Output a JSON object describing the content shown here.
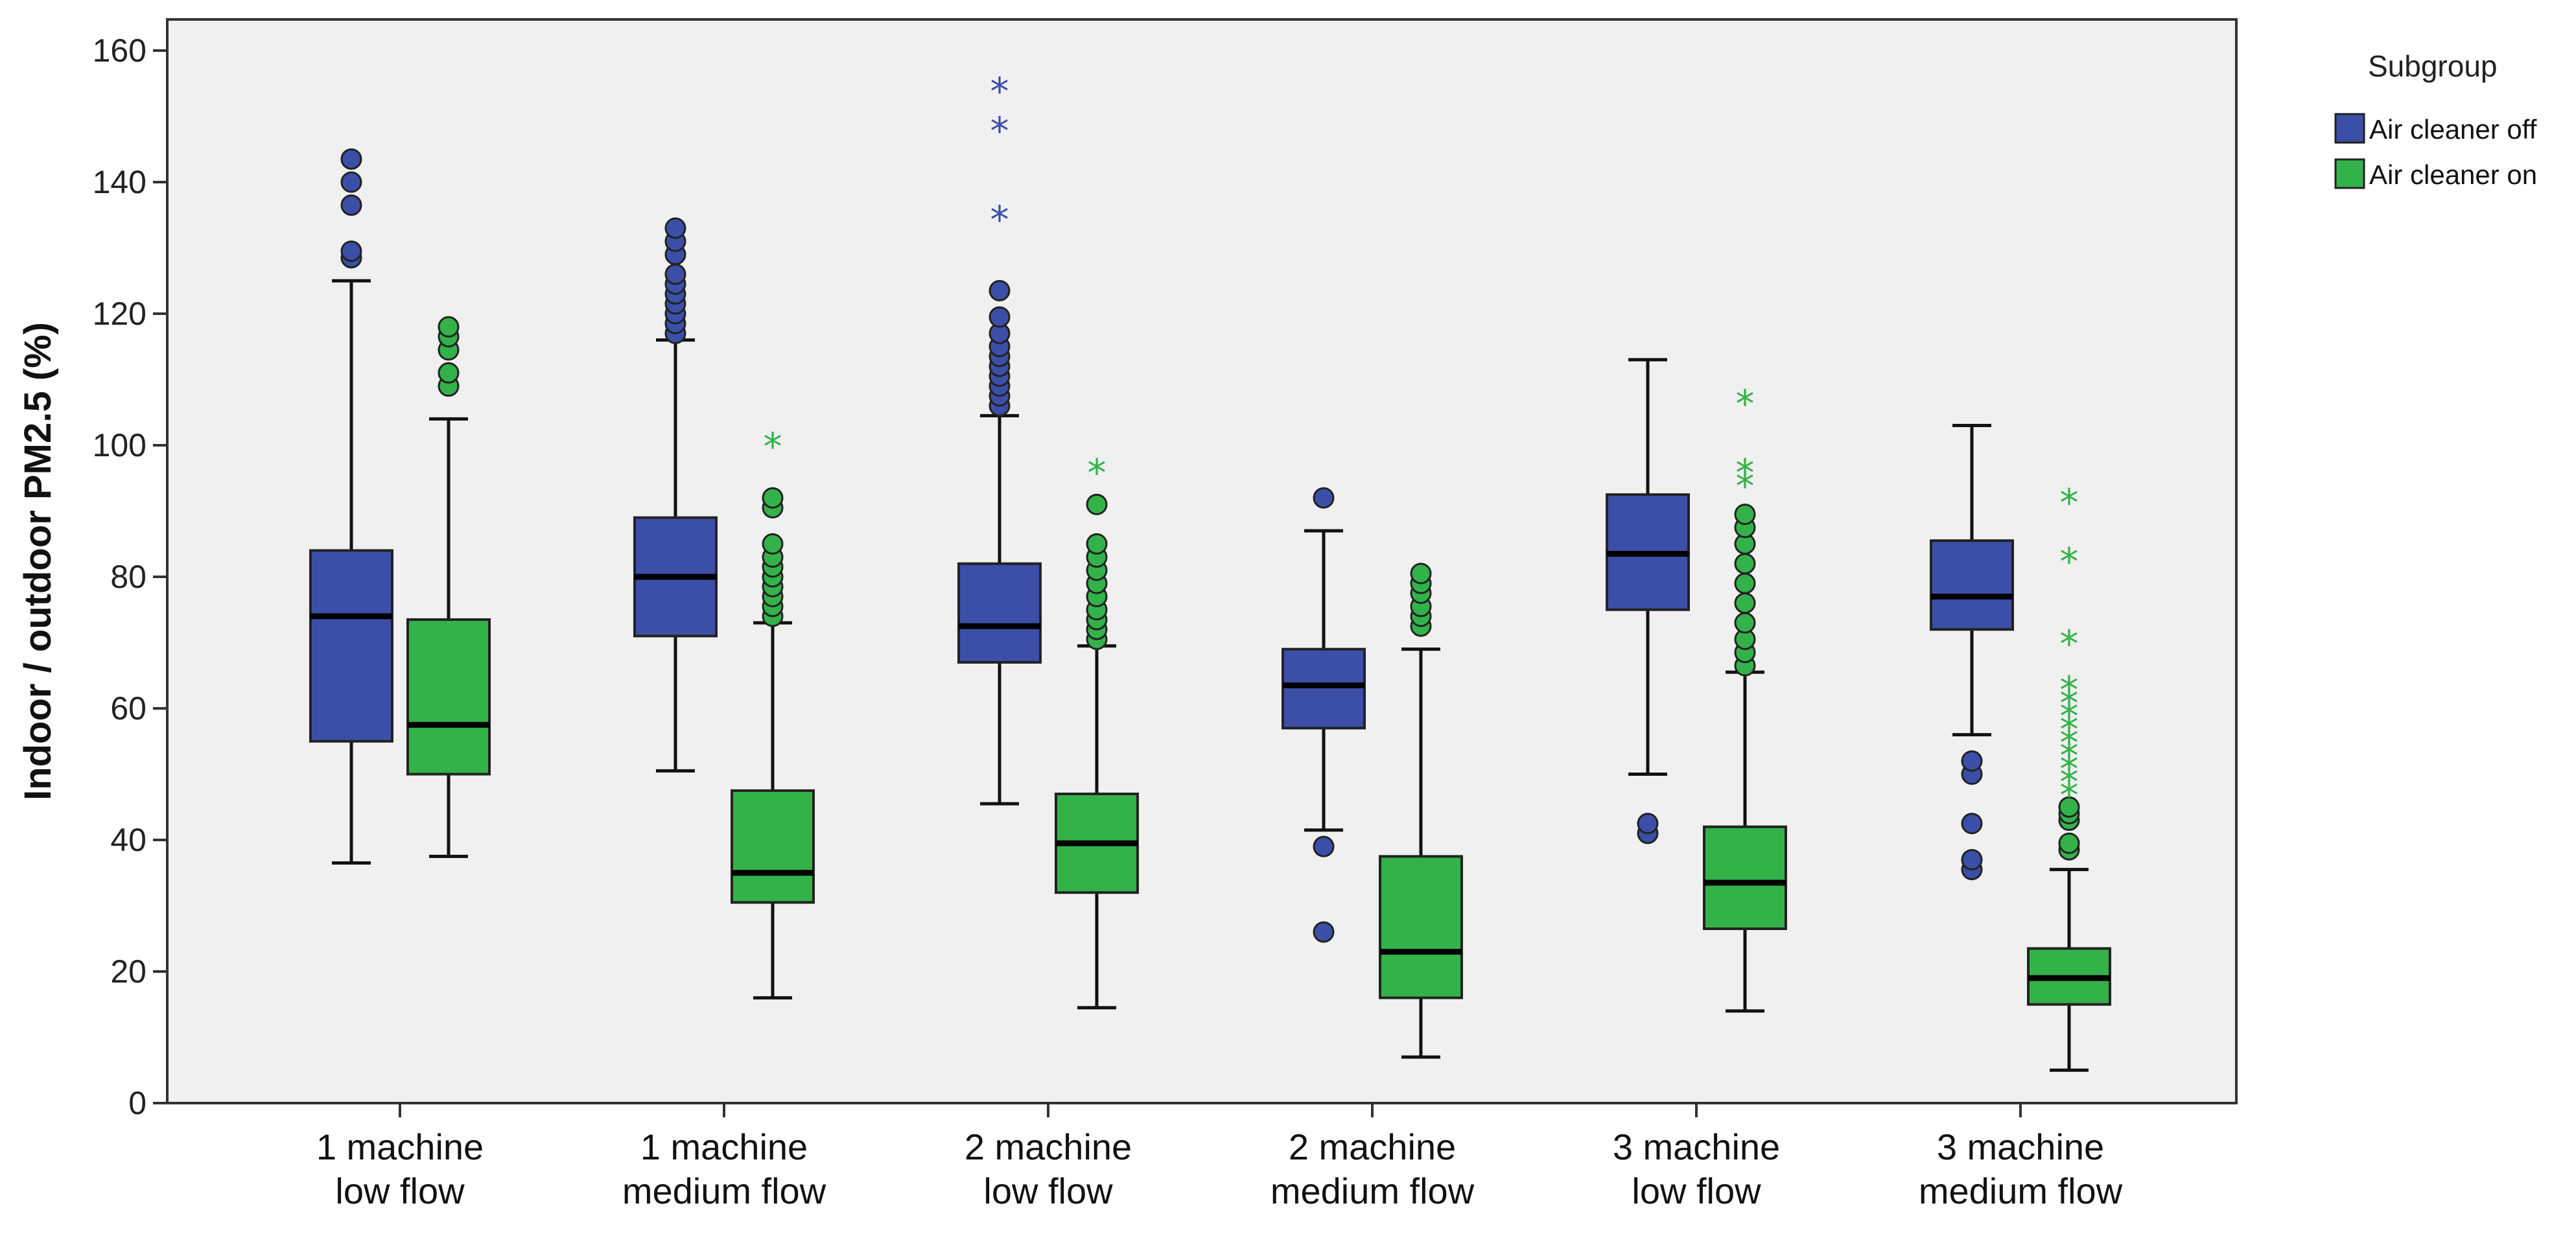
{
  "chart_data": {
    "type": "boxplot",
    "ylabel": "Indoor / outdoor PM2.5 (%)",
    "xlabel": "",
    "ylim": [
      0,
      160
    ],
    "yticks": [
      0,
      20,
      40,
      60,
      80,
      100,
      120,
      140,
      160
    ],
    "grid": false,
    "legend": {
      "title": "Subgroup",
      "placement": "top-right, outside plot",
      "entries": [
        {
          "name": "Air cleaner off",
          "color": "#3b4fa8"
        },
        {
          "name": "Air cleaner on",
          "color": "#33b24a"
        }
      ]
    },
    "categories": [
      {
        "line1": "1 machine",
        "line2": "low flow"
      },
      {
        "line1": "1 machine",
        "line2": "medium flow"
      },
      {
        "line1": "2 machine",
        "line2": "low flow"
      },
      {
        "line1": "2 machine",
        "line2": "medium flow"
      },
      {
        "line1": "3 machine",
        "line2": "low flow"
      },
      {
        "line1": "3 machine",
        "line2": "medium flow"
      }
    ],
    "series": [
      {
        "name": "Air cleaner off",
        "color": "#3b4fa8",
        "boxes": [
          {
            "min": 36.5,
            "q1": 55,
            "median": 74,
            "q3": 84,
            "max": 125,
            "outliers": [
              128.5,
              129.5,
              136.5,
              140,
              143.5
            ],
            "extremes": []
          },
          {
            "min": 50.5,
            "q1": 71,
            "median": 80,
            "q3": 89,
            "max": 116,
            "outliers": [
              117,
              118.5,
              120,
              121.5,
              123,
              124.5,
              126,
              129,
              131,
              133
            ],
            "extremes": []
          },
          {
            "min": 45.5,
            "q1": 67,
            "median": 72.5,
            "q3": 82,
            "max": 104.5,
            "outliers": [
              106,
              107.5,
              109,
              110.5,
              112,
              113.5,
              115,
              117,
              119.5,
              123.5
            ],
            "extremes": [
              134.5,
              148,
              154
            ]
          },
          {
            "min": 41.5,
            "q1": 57,
            "median": 63.5,
            "q3": 69,
            "max": 87,
            "outliers": [
              26,
              39,
              92
            ],
            "extremes": []
          },
          {
            "min": 50,
            "q1": 75,
            "median": 83.5,
            "q3": 92.5,
            "max": 113,
            "outliers": [
              41,
              42.5
            ],
            "extremes": []
          },
          {
            "min": 56,
            "q1": 72,
            "median": 77,
            "q3": 85.5,
            "max": 103,
            "outliers": [
              35.5,
              37,
              42.5,
              50,
              52
            ],
            "extremes": []
          }
        ]
      },
      {
        "name": "Air cleaner on",
        "color": "#33b24a",
        "boxes": [
          {
            "min": 37.5,
            "q1": 50,
            "median": 57.5,
            "q3": 73.5,
            "max": 104,
            "outliers": [
              109,
              111,
              114.5,
              116.5,
              118
            ],
            "extremes": []
          },
          {
            "min": 16,
            "q1": 30.5,
            "median": 35,
            "q3": 47.5,
            "max": 73,
            "outliers": [
              74,
              75.5,
              77,
              78.5,
              80,
              81.5,
              83,
              85,
              90.5,
              92
            ],
            "extremes": [
              100
            ]
          },
          {
            "min": 14.5,
            "q1": 32,
            "median": 39.5,
            "q3": 47,
            "max": 69.5,
            "outliers": [
              70.5,
              72,
              73.5,
              75,
              77,
              79,
              81,
              83,
              85,
              91
            ],
            "extremes": [
              96
            ]
          },
          {
            "min": 7,
            "q1": 16,
            "median": 23,
            "q3": 37.5,
            "max": 69,
            "outliers": [
              72.5,
              74,
              75.5,
              77.5,
              79,
              80.5
            ],
            "extremes": []
          },
          {
            "min": 14,
            "q1": 26.5,
            "median": 33.5,
            "q3": 42,
            "max": 65.5,
            "outliers": [
              66.5,
              68.5,
              70.5,
              73,
              76,
              79,
              82,
              85,
              87.5,
              89.5
            ],
            "extremes": [
              94,
              96,
              106.5
            ]
          },
          {
            "min": 5,
            "q1": 15,
            "median": 19,
            "q3": 23.5,
            "max": 35.5,
            "outliers": [
              38.5,
              39.5,
              43,
              44,
              45
            ],
            "extremes": [
              47,
              49,
              51,
              53,
              55,
              57,
              59,
              61,
              63,
              70,
              82.5,
              91.5
            ]
          }
        ]
      }
    ]
  }
}
